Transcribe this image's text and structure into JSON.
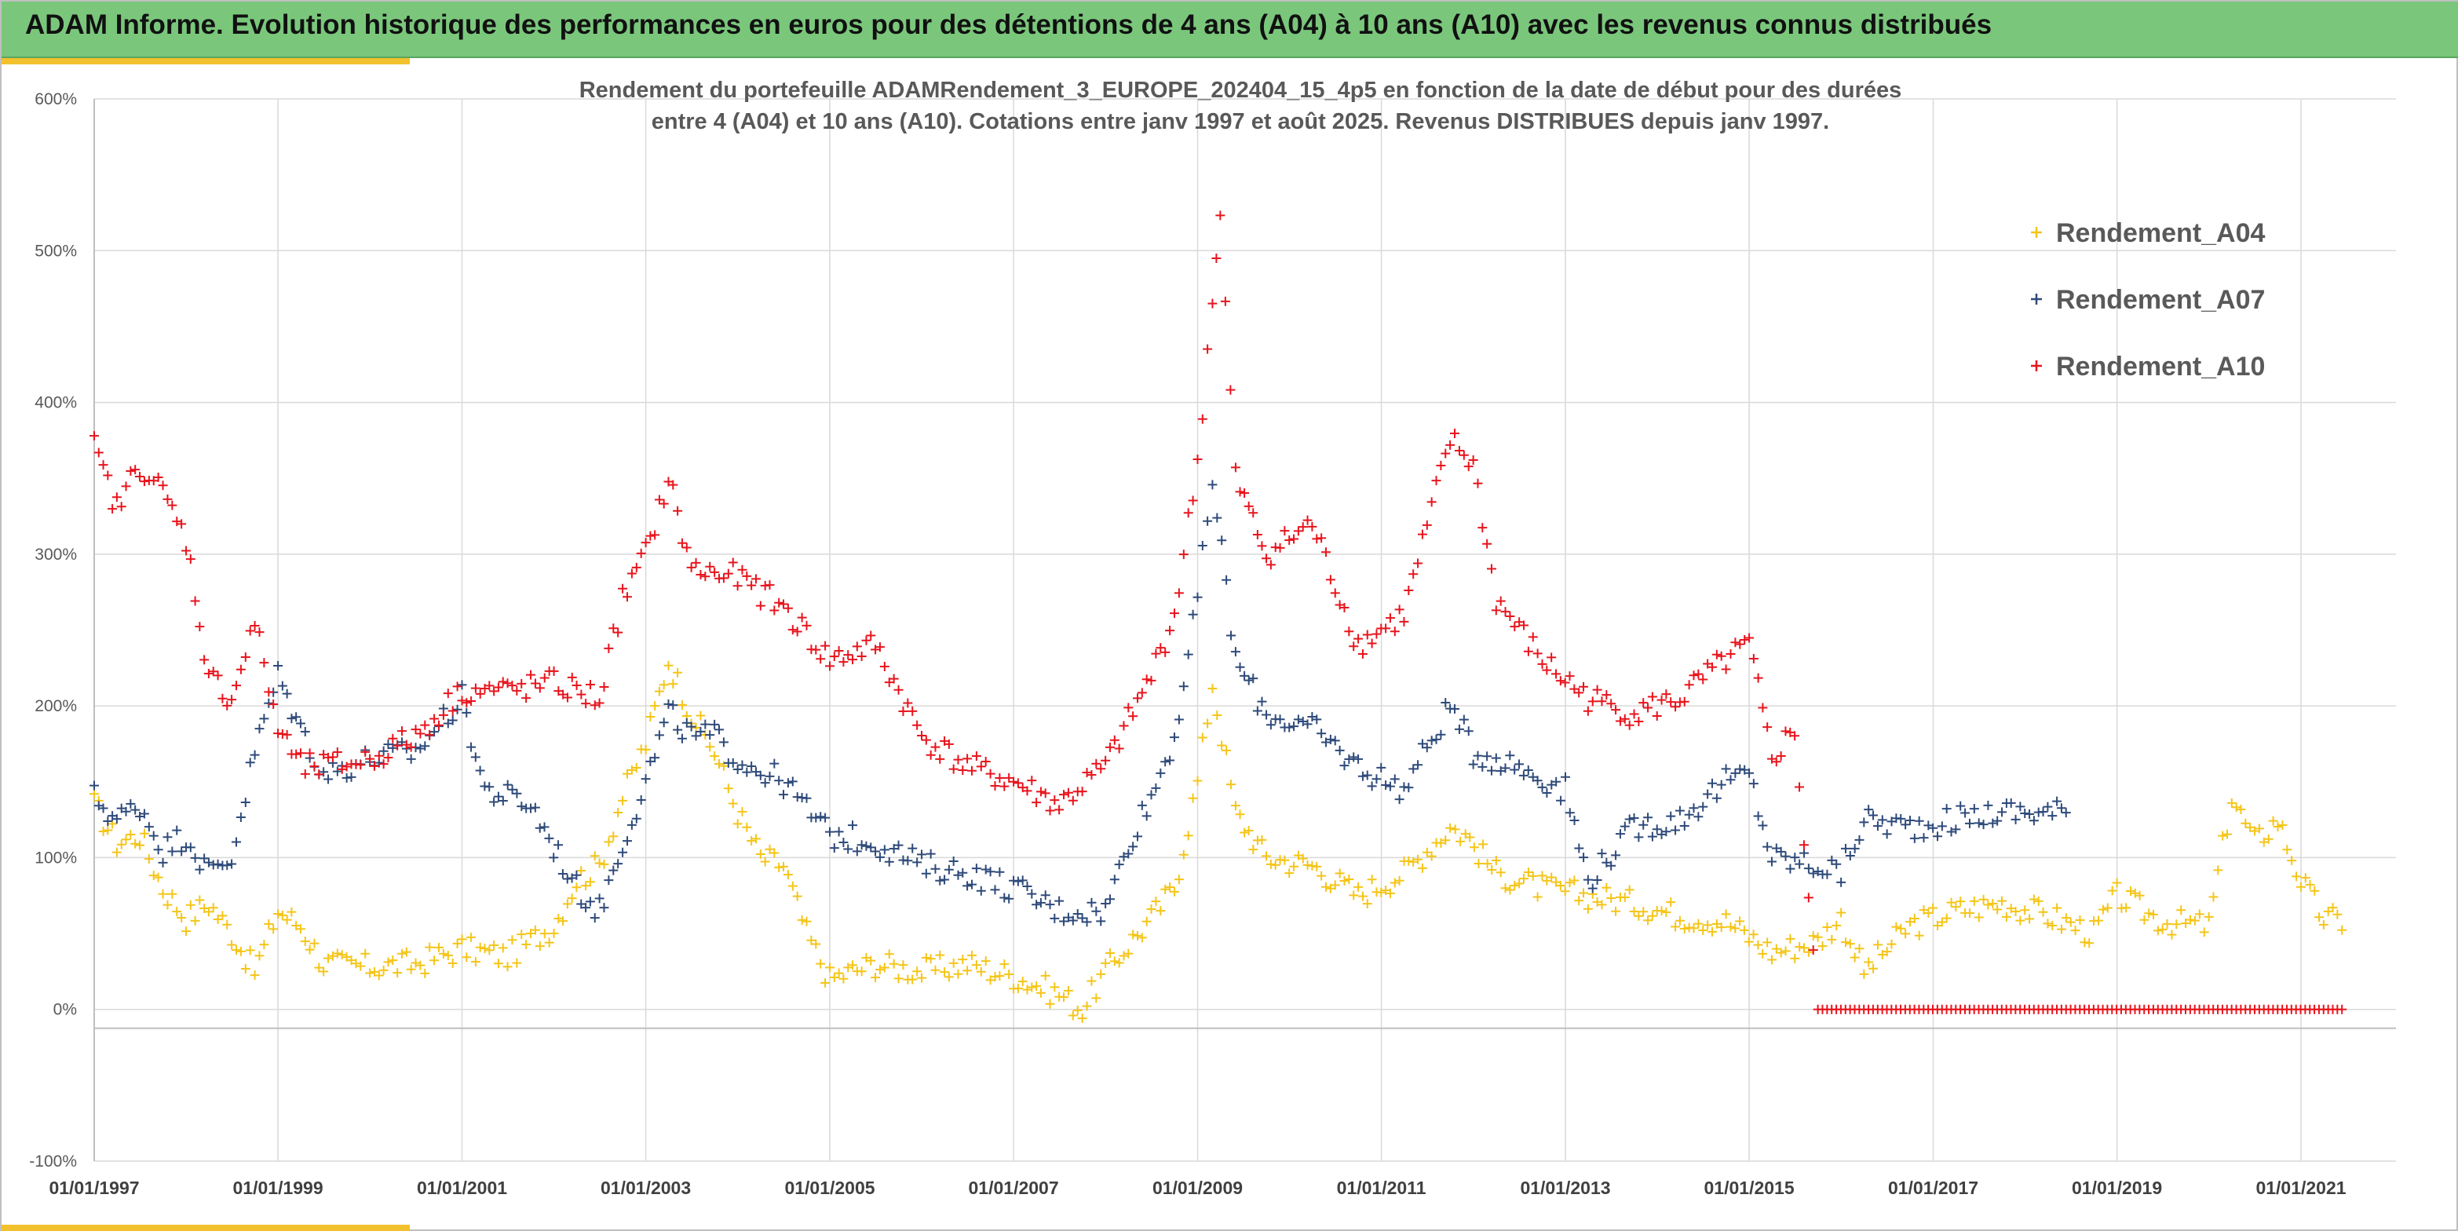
{
  "banner": {
    "title": "ADAM Informe. Evolution historique des performances en euros pour des détentions de 4 ans (A04) à 10 ans (A10) avec les revenus connus distribués"
  },
  "colors": {
    "banner_bg": "#7ac77c",
    "accent": "#f2c12e",
    "a04": "#f5c518",
    "a07": "#2e4a7a",
    "a10": "#e8141c",
    "grid": "#d9d9d9"
  },
  "chart_data": {
    "type": "scatter",
    "title_line1": "Rendement du portefeuille ADAMRendement_3_EUROPE_202404_15_4p5  en fonction de la date de début pour des durées",
    "title_line2": "entre 4 (A04) et 10 ans (A10). Cotations entre janv 1997 et août 2025. Revenus DISTRIBUES depuis janv 1997.",
    "marker": "+",
    "x_axis": {
      "type": "date",
      "range": [
        "1997-01-01",
        "2022-01-01"
      ],
      "tick_labels": [
        "01/01/1997",
        "01/01/1999",
        "01/01/2001",
        "01/01/2003",
        "01/01/2005",
        "01/01/2007",
        "01/01/2009",
        "01/01/2011",
        "01/01/2013",
        "01/01/2015",
        "01/01/2017",
        "01/01/2019",
        "01/01/2021"
      ]
    },
    "y_axis": {
      "range": [
        -100,
        600
      ],
      "unit": "%",
      "tick_labels": [
        "600%",
        "500%",
        "400%",
        "300%",
        "200%",
        "100%",
        "0%",
        "-100%"
      ]
    },
    "grid": true,
    "legend_position": "top-right",
    "series": [
      {
        "name": "Rendement_A04",
        "color": "#f5c518",
        "points": [
          [
            "1997-01-01",
            135
          ],
          [
            "1997-04-01",
            110
          ],
          [
            "1997-07-01",
            115
          ],
          [
            "1997-10-01",
            80
          ],
          [
            "1998-01-01",
            60
          ],
          [
            "1998-04-01",
            70
          ],
          [
            "1998-07-01",
            50
          ],
          [
            "1998-10-01",
            25
          ],
          [
            "1999-01-01",
            65
          ],
          [
            "1999-04-01",
            55
          ],
          [
            "1999-07-01",
            30
          ],
          [
            "2000-01-01",
            28
          ],
          [
            "2000-07-01",
            30
          ],
          [
            "2001-01-01",
            40
          ],
          [
            "2001-07-01",
            35
          ],
          [
            "2002-01-01",
            55
          ],
          [
            "2002-04-01",
            85
          ],
          [
            "2002-07-01",
            95
          ],
          [
            "2002-10-01",
            140
          ],
          [
            "2003-01-01",
            175
          ],
          [
            "2003-04-01",
            230
          ],
          [
            "2003-07-01",
            195
          ],
          [
            "2003-10-01",
            170
          ],
          [
            "2004-01-01",
            130
          ],
          [
            "2004-04-01",
            100
          ],
          [
            "2004-07-01",
            95
          ],
          [
            "2004-10-01",
            50
          ],
          [
            "2005-01-01",
            20
          ],
          [
            "2005-07-01",
            30
          ],
          [
            "2006-01-01",
            25
          ],
          [
            "2006-07-01",
            30
          ],
          [
            "2007-01-01",
            22
          ],
          [
            "2007-07-01",
            10
          ],
          [
            "2007-10-01",
            0
          ],
          [
            "2008-01-01",
            25
          ],
          [
            "2008-07-01",
            60
          ],
          [
            "2008-10-01",
            80
          ],
          [
            "2009-01-01",
            150
          ],
          [
            "2009-03-01",
            215
          ],
          [
            "2009-06-01",
            130
          ],
          [
            "2009-10-01",
            100
          ],
          [
            "2010-04-01",
            95
          ],
          [
            "2010-10-01",
            75
          ],
          [
            "2011-04-01",
            90
          ],
          [
            "2011-10-01",
            120
          ],
          [
            "2011-12-01",
            115
          ],
          [
            "2012-04-01",
            90
          ],
          [
            "2012-10-01",
            80
          ],
          [
            "2013-04-01",
            75
          ],
          [
            "2013-10-01",
            70
          ],
          [
            "2014-04-01",
            62
          ],
          [
            "2014-10-01",
            58
          ],
          [
            "2015-04-01",
            38
          ],
          [
            "2015-10-01",
            45
          ],
          [
            "2016-01-01",
            60
          ],
          [
            "2016-04-01",
            25
          ],
          [
            "2016-10-01",
            55
          ],
          [
            "2017-04-01",
            65
          ],
          [
            "2017-10-01",
            70
          ],
          [
            "2018-04-01",
            62
          ],
          [
            "2018-10-01",
            50
          ],
          [
            "2019-01-01",
            75
          ],
          [
            "2019-07-01",
            58
          ],
          [
            "2020-01-01",
            55
          ],
          [
            "2020-04-01",
            140
          ],
          [
            "2020-07-01",
            110
          ],
          [
            "2020-10-01",
            125
          ],
          [
            "2021-01-01",
            85
          ],
          [
            "2021-04-01",
            60
          ],
          [
            "2021-07-01",
            58
          ]
        ]
      },
      {
        "name": "Rendement_A07",
        "color": "#2e4a7a",
        "points": [
          [
            "1997-01-01",
            140
          ],
          [
            "1997-04-01",
            125
          ],
          [
            "1997-07-01",
            135
          ],
          [
            "1997-10-01",
            105
          ],
          [
            "1998-01-01",
            115
          ],
          [
            "1998-04-01",
            90
          ],
          [
            "1998-07-01",
            100
          ],
          [
            "1998-10-01",
            170
          ],
          [
            "1999-01-01",
            220
          ],
          [
            "1999-04-01",
            185
          ],
          [
            "1999-07-01",
            155
          ],
          [
            "2000-01-01",
            165
          ],
          [
            "2000-07-01",
            170
          ],
          [
            "2001-01-01",
            205
          ],
          [
            "2001-04-01",
            145
          ],
          [
            "2001-10-01",
            135
          ],
          [
            "2002-04-01",
            80
          ],
          [
            "2002-07-01",
            65
          ],
          [
            "2002-10-01",
            110
          ],
          [
            "2003-01-01",
            150
          ],
          [
            "2003-04-01",
            195
          ],
          [
            "2003-07-01",
            180
          ],
          [
            "2003-10-01",
            180
          ],
          [
            "2004-01-01",
            165
          ],
          [
            "2004-07-01",
            150
          ],
          [
            "2005-01-01",
            115
          ],
          [
            "2005-07-01",
            110
          ],
          [
            "2006-01-01",
            95
          ],
          [
            "2006-07-01",
            90
          ],
          [
            "2007-01-01",
            80
          ],
          [
            "2007-07-01",
            65
          ],
          [
            "2008-01-01",
            65
          ],
          [
            "2008-04-01",
            110
          ],
          [
            "2008-07-01",
            140
          ],
          [
            "2008-10-01",
            180
          ],
          [
            "2009-01-01",
            270
          ],
          [
            "2009-03-01",
            350
          ],
          [
            "2009-06-01",
            230
          ],
          [
            "2009-10-01",
            195
          ],
          [
            "2010-04-01",
            185
          ],
          [
            "2010-10-01",
            160
          ],
          [
            "2011-04-01",
            145
          ],
          [
            "2011-10-01",
            200
          ],
          [
            "2012-01-01",
            170
          ],
          [
            "2012-07-01",
            160
          ],
          [
            "2013-01-01",
            145
          ],
          [
            "2013-04-01",
            85
          ],
          [
            "2013-10-01",
            120
          ],
          [
            "2014-04-01",
            125
          ],
          [
            "2014-10-01",
            150
          ],
          [
            "2015-01-01",
            155
          ],
          [
            "2015-04-01",
            100
          ],
          [
            "2015-10-01",
            95
          ],
          [
            "2016-01-01",
            90
          ],
          [
            "2016-04-01",
            125
          ],
          [
            "2016-10-01",
            120
          ],
          [
            "2017-04-01",
            125
          ],
          [
            "2017-10-01",
            130
          ],
          [
            "2018-04-01",
            130
          ],
          [
            "2018-07-01",
            130
          ]
        ]
      },
      {
        "name": "Rendement_A10",
        "color": "#e8141c",
        "points": [
          [
            "1997-01-01",
            370
          ],
          [
            "1997-04-01",
            330
          ],
          [
            "1997-07-01",
            360
          ],
          [
            "1997-10-01",
            340
          ],
          [
            "1998-01-01",
            310
          ],
          [
            "1998-04-01",
            220
          ],
          [
            "1998-07-01",
            205
          ],
          [
            "1998-10-01",
            255
          ],
          [
            "1999-01-01",
            185
          ],
          [
            "1999-04-01",
            160
          ],
          [
            "1999-07-01",
            160
          ],
          [
            "2000-01-01",
            165
          ],
          [
            "2000-07-01",
            180
          ],
          [
            "2001-01-01",
            210
          ],
          [
            "2001-07-01",
            210
          ],
          [
            "2002-01-01",
            215
          ],
          [
            "2002-07-01",
            205
          ],
          [
            "2002-10-01",
            270
          ],
          [
            "2003-01-01",
            300
          ],
          [
            "2003-04-01",
            350
          ],
          [
            "2003-07-01",
            290
          ],
          [
            "2004-01-01",
            285
          ],
          [
            "2004-07-01",
            265
          ],
          [
            "2005-01-01",
            230
          ],
          [
            "2005-07-01",
            240
          ],
          [
            "2006-01-01",
            180
          ],
          [
            "2006-07-01",
            160
          ],
          [
            "2007-01-01",
            150
          ],
          [
            "2007-07-01",
            135
          ],
          [
            "2008-01-01",
            160
          ],
          [
            "2008-07-01",
            220
          ],
          [
            "2008-10-01",
            260
          ],
          [
            "2009-01-01",
            360
          ],
          [
            "2009-03-01",
            470
          ],
          [
            "2009-04-01",
            520
          ],
          [
            "2009-06-01",
            350
          ],
          [
            "2009-10-01",
            300
          ],
          [
            "2010-04-01",
            320
          ],
          [
            "2010-10-01",
            240
          ],
          [
            "2011-04-01",
            260
          ],
          [
            "2011-10-01",
            375
          ],
          [
            "2012-01-01",
            360
          ],
          [
            "2012-04-01",
            270
          ],
          [
            "2012-10-01",
            230
          ],
          [
            "2013-04-01",
            205
          ],
          [
            "2013-10-01",
            195
          ],
          [
            "2014-04-01",
            205
          ],
          [
            "2014-10-01",
            230
          ],
          [
            "2015-01-01",
            240
          ],
          [
            "2015-04-01",
            165
          ],
          [
            "2015-07-01",
            185
          ],
          [
            "2015-10-01",
            0
          ],
          [
            "2016-07-01",
            0
          ],
          [
            "2017-07-01",
            0
          ],
          [
            "2018-07-01",
            0
          ],
          [
            "2019-07-01",
            0
          ],
          [
            "2020-07-01",
            0
          ],
          [
            "2021-07-01",
            0
          ]
        ]
      }
    ]
  }
}
